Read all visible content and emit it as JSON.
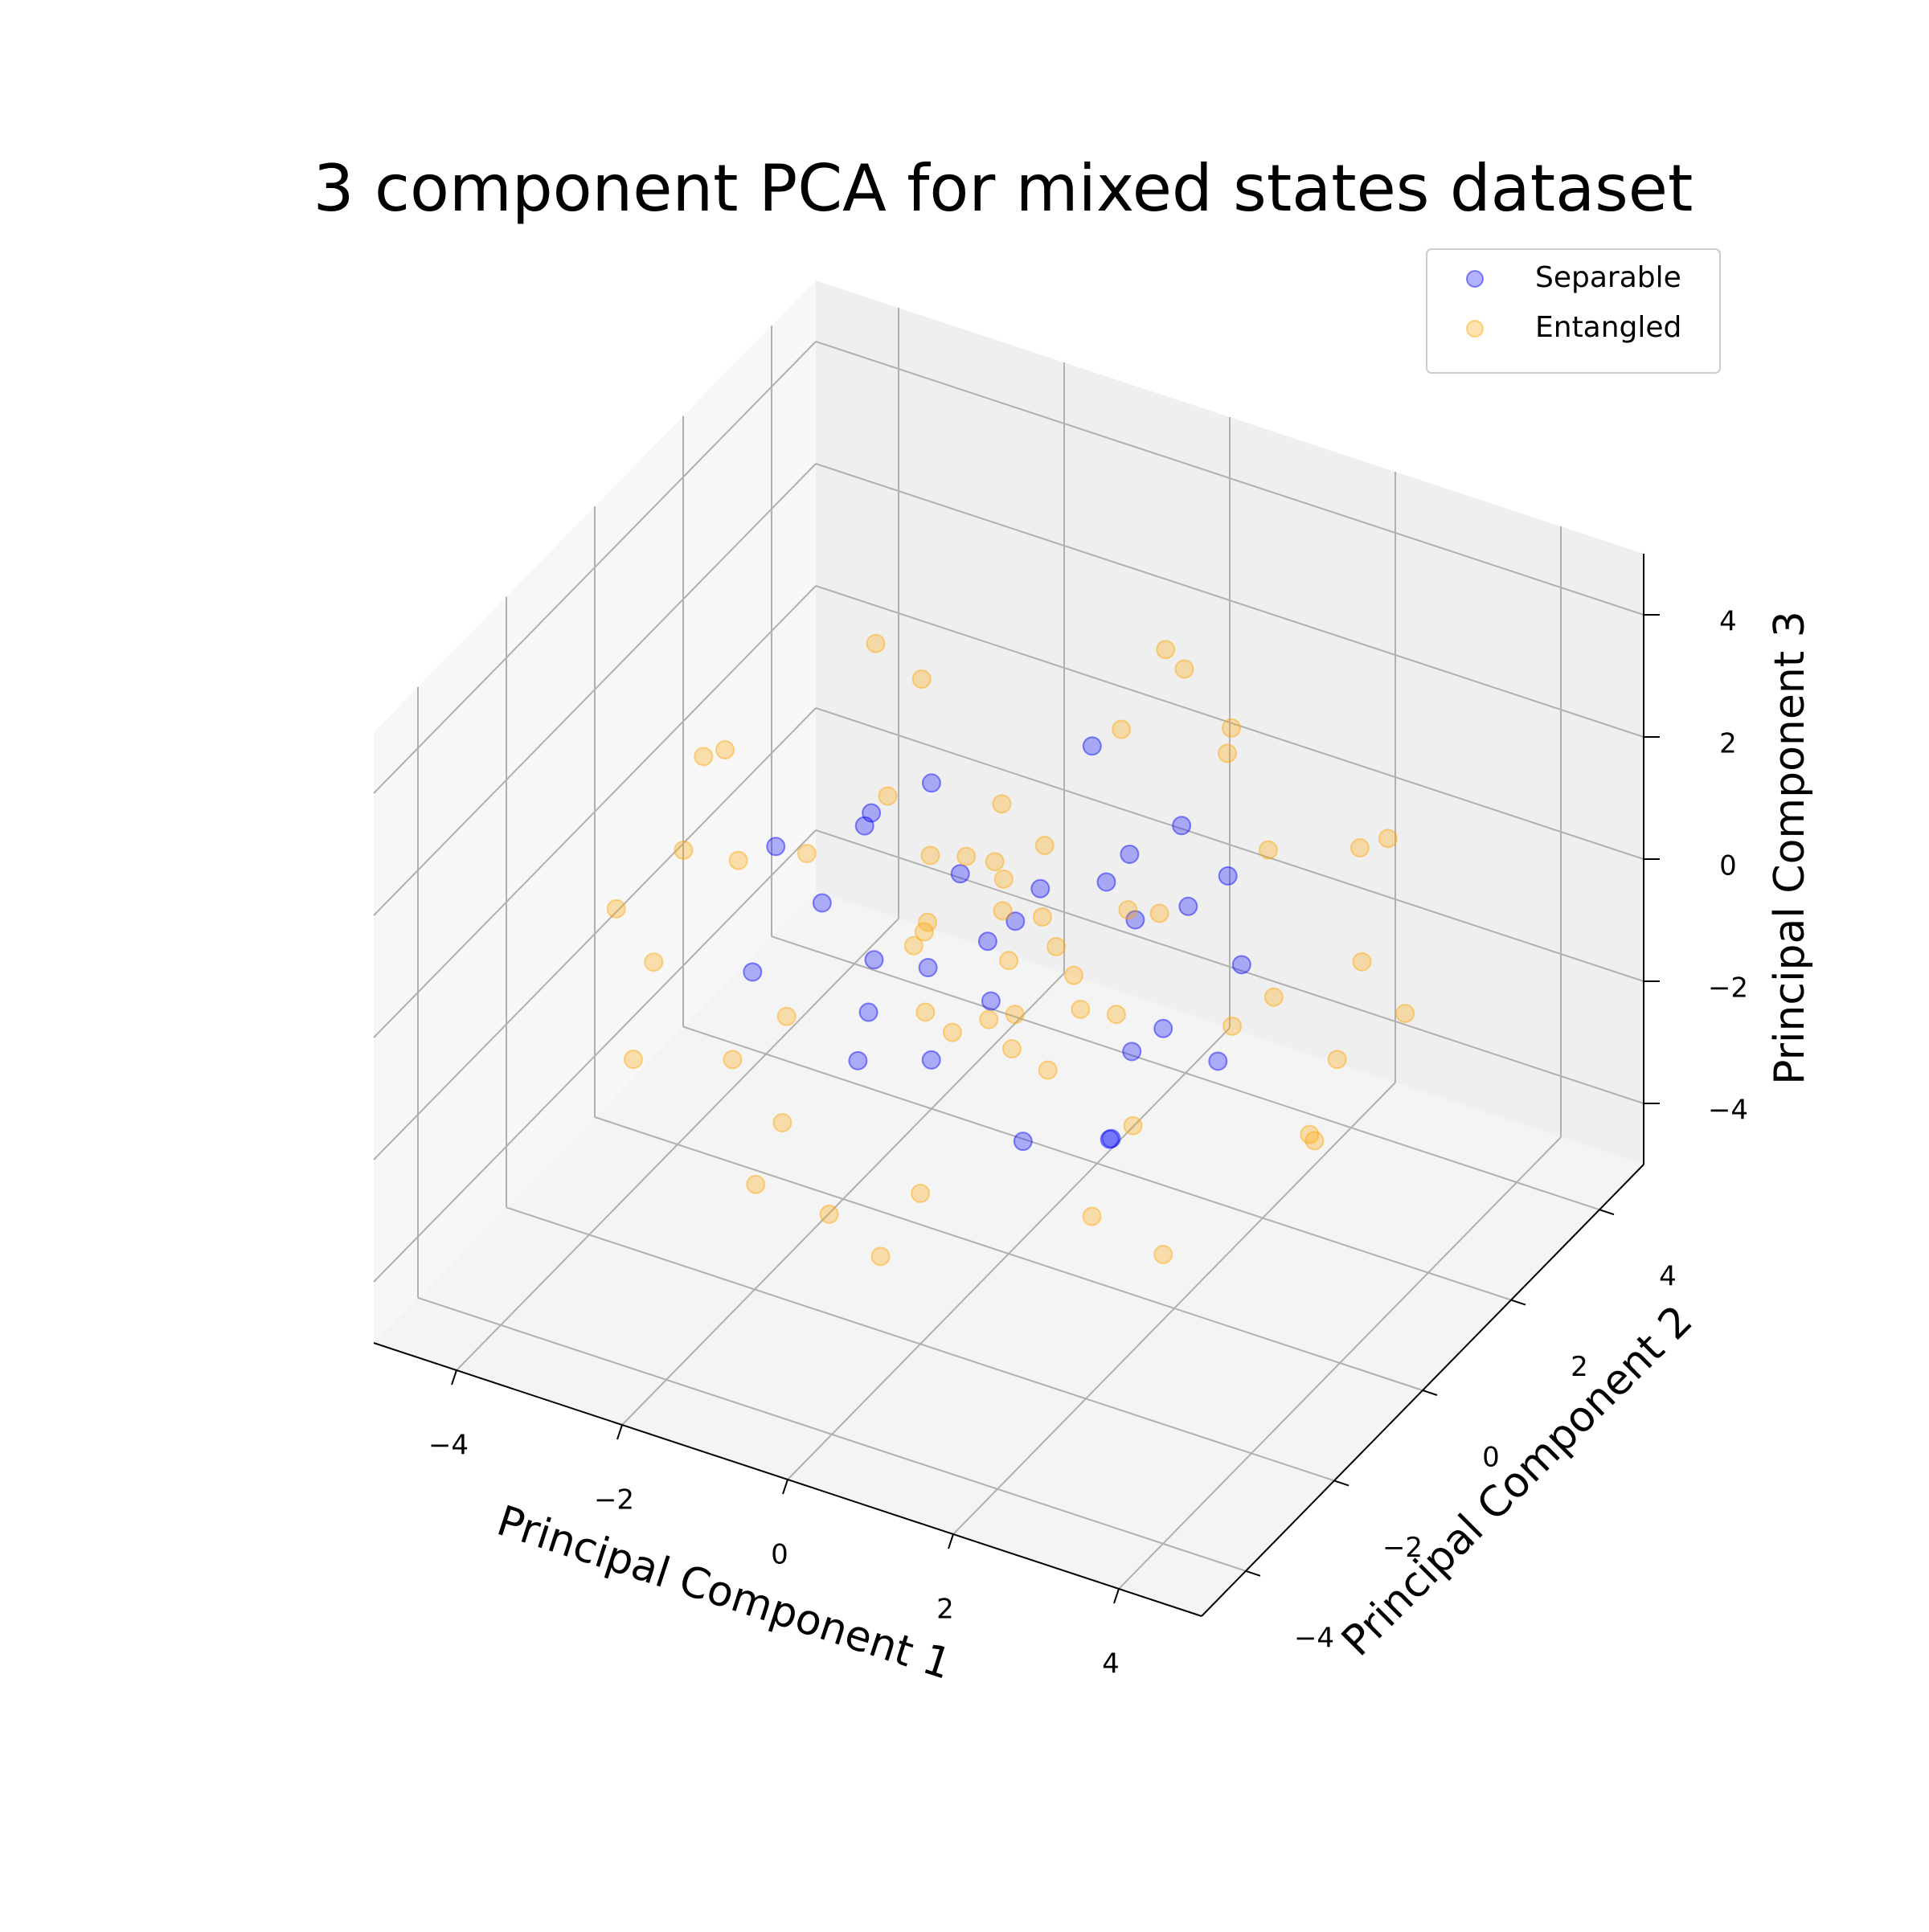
{
  "chart_data": {
    "type": "scatter3d",
    "title": "3 component PCA for mixed states dataset",
    "xlabel": "Principal Component 1",
    "ylabel": "Principal Component 2",
    "zlabel": "Principal Component 3",
    "xlim": [
      -5,
      5
    ],
    "ylim": [
      -5,
      5
    ],
    "zlim": [
      -5,
      5
    ],
    "xticks": [
      {
        "value": -4,
        "label": "−4"
      },
      {
        "value": -2,
        "label": "−2"
      },
      0,
      2,
      4
    ],
    "yticks": [
      {
        "value": -4,
        "label": "−4"
      },
      {
        "value": -2,
        "label": "−2"
      },
      0,
      2,
      4
    ],
    "zticks": [
      {
        "value": -4,
        "label": "−4"
      },
      {
        "value": -2,
        "label": "−2"
      },
      0,
      2,
      4
    ],
    "grid": true,
    "legend": "upper right",
    "series": [
      {
        "name": "Separable",
        "color": "#0000ff",
        "alpha": 0.3,
        "x": [
          -1.2,
          0.8,
          2.1,
          -2.3,
          0.3,
          1.5,
          -0.7,
          2.4,
          -1.8,
          0.1,
          1.1,
          -2.6,
          0.6,
          -0.4,
          1.9,
          -1.4,
          2.2,
          -0.9,
          0.4,
          -2.0,
          1.3,
          -0.2,
          0.9,
          -1.6,
          2.6,
          -1.1,
          0.2,
          1.7,
          -2.4,
          0.7
        ],
        "y": [
          0.5,
          -1.9,
          0.8,
          1.2,
          2.3,
          -0.6,
          -2.1,
          -1.0,
          0.2,
          1.7,
          2.0,
          -0.4,
          -0.8,
          0.9,
          1.4,
          -1.6,
          -1.8,
          2.4,
          -2.5,
          0.7,
          0.3,
          -0.1,
          1.1,
          1.9,
          0.4,
          -1.2,
          -2.2,
          -0.9,
          -1.3,
          2.6
        ],
        "z": [
          1.8,
          0.9,
          -1.5,
          0.3,
          -1.1,
          2.2,
          -0.6,
          0.5,
          -2.0,
          2.1,
          -0.3,
          0.8,
          -2.3,
          -0.4,
          1.0,
          1.3,
          -0.8,
          -1.2,
          0.2,
          -1.6,
          1.9,
          0.1,
          -2.1,
          -0.9,
          0.6,
          2.4,
          1.4,
          -1.7,
          -0.5,
          0.4
        ]
      },
      {
        "name": "Entangled",
        "color": "#ffa500",
        "alpha": 0.3,
        "x": [
          4.0,
          -3.8,
          0.5,
          -0.6,
          1.2,
          -0.8,
          2.8,
          -2.9,
          2.5,
          -2.6,
          3.1,
          -3.0,
          1.6,
          -1.4,
          0.9,
          -1.1,
          3.5,
          -3.4,
          2.0,
          -2.2,
          0.2,
          -0.3,
          3.8,
          -3.9,
          1.8,
          -1.9,
          2.9,
          -2.7,
          0.7,
          -0.5,
          4.2,
          -4.1,
          1.0,
          -1.2,
          2.4,
          -2.3,
          3.3,
          -3.2,
          0.0,
          0.4,
          0.3,
          -0.5,
          1.0,
          -0.2,
          0.6,
          -1.0,
          0.1,
          0.8,
          -0.7,
          1.3,
          -1.3,
          0.4,
          -0.1,
          0.9,
          -0.9,
          0.2,
          1.5,
          -0.4,
          0.0,
          -1.1
        ],
        "y": [
          0.5,
          1.0,
          4.1,
          -3.9,
          0.3,
          -0.5,
          2.7,
          -2.6,
          -2.8,
          2.9,
          1.0,
          -0.8,
          3.0,
          -3.1,
          -2.0,
          2.2,
          -1.5,
          1.8,
          1.2,
          -1.0,
          3.6,
          -3.5,
          -0.2,
          0.4,
          -3.3,
          3.4,
          2.0,
          -2.3,
          1.5,
          -1.8,
          1.1,
          -1.2,
          4.0,
          -4.0,
          -1.0,
          1.3,
          2.4,
          -2.5,
          -2.9,
          2.8,
          0.2,
          0.8,
          -0.4,
          -0.9,
          0.5,
          0.1,
          -0.3,
          1.2,
          -0.6,
          0.0,
          0.6,
          -1.2,
          1.0,
          -0.8,
          -0.2,
          0.7,
          0.6,
          -1.4,
          0.0,
          1.1
        ],
        "z": [
          1.2,
          -1.0,
          0.8,
          1.5,
          3.9,
          -4.0,
          0.9,
          0.4,
          -1.2,
          1.1,
          -2.4,
          2.5,
          -2.3,
          -2.2,
          3.3,
          -3.2,
          1.4,
          -1.3,
          3.2,
          -3.1,
          2.0,
          -1.9,
          -1.3,
          1.1,
          1.6,
          -1.0,
          -2.0,
          2.1,
          -3.7,
          3.6,
          0.0,
          -0.3,
          -0.9,
          0.6,
          -3.2,
          3.0,
          1.5,
          -1.4,
          -2.9,
          3.0,
          0.5,
          -0.2,
          0.3,
          -0.8,
          -1.1,
          1.0,
          1.4,
          0.1,
          0.4,
          -0.5,
          -0.6,
          -0.1,
          0.9,
          -1.0,
          -1.3,
          -0.4,
          0.8,
          0.9,
          -0.2,
          0.2
        ]
      }
    ]
  }
}
